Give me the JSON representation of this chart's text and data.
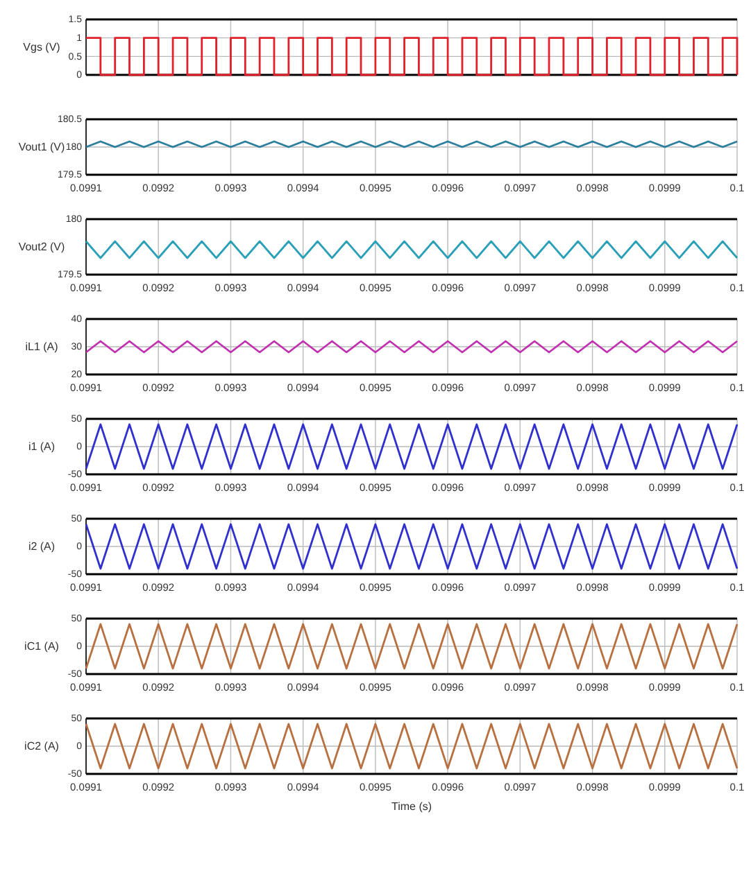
{
  "chart_data": [
    {
      "type": "step",
      "ylabel": "Vgs (V)",
      "tick_labels": "y",
      "grid": true,
      "xlim": [
        0.0991,
        0.1
      ],
      "xticks": [
        0.0991,
        0.0992,
        0.0993,
        0.0994,
        0.0995,
        0.0996,
        0.0997,
        0.0998,
        0.0999,
        0.1
      ],
      "ylim": [
        0,
        1.5
      ],
      "yticks": [
        0,
        0.5,
        1,
        1.5
      ],
      "x": [
        0.0991,
        0.09912,
        0.09914,
        0.09916,
        0.09918,
        0.0992,
        0.09922,
        0.09924,
        0.09926,
        0.09928,
        0.0993,
        0.09932,
        0.09934,
        0.09936,
        0.09938,
        0.0994,
        0.09942,
        0.09944,
        0.09946,
        0.09948,
        0.0995,
        0.09952,
        0.09954,
        0.09956,
        0.09958,
        0.0996,
        0.09962,
        0.09964,
        0.09966,
        0.09968,
        0.0997,
        0.09972,
        0.09974,
        0.09976,
        0.09978,
        0.0998,
        0.09982,
        0.09984,
        0.09986,
        0.09988,
        0.0999,
        0.09992,
        0.09994,
        0.09996,
        0.09998,
        0.1
      ],
      "series": [
        {
          "color": "#e0202a",
          "values": [
            1,
            0,
            1,
            0,
            1,
            0,
            1,
            0,
            1,
            0,
            1,
            0,
            1,
            0,
            1,
            0,
            1,
            0,
            1,
            0,
            1,
            0,
            1,
            0,
            1,
            0,
            1,
            0,
            1,
            0,
            1,
            0,
            1,
            0,
            1,
            0,
            1,
            0,
            1,
            0,
            1,
            0,
            1,
            0,
            1,
            0
          ]
        }
      ]
    },
    {
      "type": "line",
      "ylabel": "Vout1 (V)",
      "grid": true,
      "xlim": [
        0.0991,
        0.1
      ],
      "xticks": [
        0.0991,
        0.0992,
        0.0993,
        0.0994,
        0.0995,
        0.0996,
        0.0997,
        0.0998,
        0.0999,
        0.1
      ],
      "ylim": [
        179.5,
        180.5
      ],
      "yticks": [
        179.5,
        180,
        180.5
      ],
      "x": [
        0.0991,
        0.09912,
        0.09914,
        0.09916,
        0.09918,
        0.0992,
        0.09922,
        0.09924,
        0.09926,
        0.09928,
        0.0993,
        0.09932,
        0.09934,
        0.09936,
        0.09938,
        0.0994,
        0.09942,
        0.09944,
        0.09946,
        0.09948,
        0.0995,
        0.09952,
        0.09954,
        0.09956,
        0.09958,
        0.0996,
        0.09962,
        0.09964,
        0.09966,
        0.09968,
        0.0997,
        0.09972,
        0.09974,
        0.09976,
        0.09978,
        0.0998,
        0.09982,
        0.09984,
        0.09986,
        0.09988,
        0.0999,
        0.09992,
        0.09994,
        0.09996,
        0.09998,
        0.1
      ],
      "series": [
        {
          "color": "#2a7f9e",
          "values": [
            180,
            180.1,
            180,
            180.1,
            180,
            180.1,
            180,
            180.1,
            180,
            180.1,
            180,
            180.1,
            180,
            180.1,
            180,
            180.1,
            180,
            180.1,
            180,
            180.1,
            180,
            180.1,
            180,
            180.1,
            180,
            180.1,
            180,
            180.1,
            180,
            180.1,
            180,
            180.1,
            180,
            180.1,
            180,
            180.1,
            180,
            180.1,
            180,
            180.1,
            180,
            180.1,
            180,
            180.1,
            180,
            180.1
          ]
        }
      ]
    },
    {
      "type": "line",
      "ylabel": "Vout2 (V)",
      "grid": true,
      "xlim": [
        0.0991,
        0.1
      ],
      "xticks": [
        0.0991,
        0.0992,
        0.0993,
        0.0994,
        0.0995,
        0.0996,
        0.0997,
        0.0998,
        0.0999,
        0.1
      ],
      "ylim": [
        179.5,
        180
      ],
      "yticks": [
        179.5,
        180
      ],
      "x": [
        0.0991,
        0.09912,
        0.09914,
        0.09916,
        0.09918,
        0.0992,
        0.09922,
        0.09924,
        0.09926,
        0.09928,
        0.0993,
        0.09932,
        0.09934,
        0.09936,
        0.09938,
        0.0994,
        0.09942,
        0.09944,
        0.09946,
        0.09948,
        0.0995,
        0.09952,
        0.09954,
        0.09956,
        0.09958,
        0.0996,
        0.09962,
        0.09964,
        0.09966,
        0.09968,
        0.0997,
        0.09972,
        0.09974,
        0.09976,
        0.09978,
        0.0998,
        0.09982,
        0.09984,
        0.09986,
        0.09988,
        0.0999,
        0.09992,
        0.09994,
        0.09996,
        0.09998,
        0.1
      ],
      "series": [
        {
          "color": "#2aa0b8",
          "values": [
            179.8,
            179.65,
            179.8,
            179.65,
            179.8,
            179.65,
            179.8,
            179.65,
            179.8,
            179.65,
            179.8,
            179.65,
            179.8,
            179.65,
            179.8,
            179.65,
            179.8,
            179.65,
            179.8,
            179.65,
            179.8,
            179.65,
            179.8,
            179.65,
            179.8,
            179.65,
            179.8,
            179.65,
            179.8,
            179.65,
            179.8,
            179.65,
            179.8,
            179.65,
            179.8,
            179.65,
            179.8,
            179.65,
            179.8,
            179.65,
            179.8,
            179.65,
            179.8,
            179.65,
            179.8,
            179.65
          ]
        }
      ]
    },
    {
      "type": "line",
      "ylabel": "iL1 (A)",
      "grid": true,
      "xlim": [
        0.0991,
        0.1
      ],
      "xticks": [
        0.0991,
        0.0992,
        0.0993,
        0.0994,
        0.0995,
        0.0996,
        0.0997,
        0.0998,
        0.0999,
        0.1
      ],
      "ylim": [
        20,
        40
      ],
      "yticks": [
        20,
        30,
        40
      ],
      "x": [
        0.0991,
        0.09912,
        0.09914,
        0.09916,
        0.09918,
        0.0992,
        0.09922,
        0.09924,
        0.09926,
        0.09928,
        0.0993,
        0.09932,
        0.09934,
        0.09936,
        0.09938,
        0.0994,
        0.09942,
        0.09944,
        0.09946,
        0.09948,
        0.0995,
        0.09952,
        0.09954,
        0.09956,
        0.09958,
        0.0996,
        0.09962,
        0.09964,
        0.09966,
        0.09968,
        0.0997,
        0.09972,
        0.09974,
        0.09976,
        0.09978,
        0.0998,
        0.09982,
        0.09984,
        0.09986,
        0.09988,
        0.0999,
        0.09992,
        0.09994,
        0.09996,
        0.09998,
        0.1
      ],
      "series": [
        {
          "color": "#c030b0",
          "values": [
            28,
            32,
            28,
            32,
            28,
            32,
            28,
            32,
            28,
            32,
            28,
            32,
            28,
            32,
            28,
            32,
            28,
            32,
            28,
            32,
            28,
            32,
            28,
            32,
            28,
            32,
            28,
            32,
            28,
            32,
            28,
            32,
            28,
            32,
            28,
            32,
            28,
            32,
            28,
            32,
            28,
            32,
            28,
            32,
            28,
            32
          ]
        }
      ]
    },
    {
      "type": "line",
      "ylabel": "i1 (A)",
      "grid": true,
      "xlim": [
        0.0991,
        0.1
      ],
      "xticks": [
        0.0991,
        0.0992,
        0.0993,
        0.0994,
        0.0995,
        0.0996,
        0.0997,
        0.0998,
        0.0999,
        0.1
      ],
      "ylim": [
        -50,
        50
      ],
      "yticks": [
        -50,
        0,
        50
      ],
      "x": [
        0.0991,
        0.09912,
        0.09914,
        0.09916,
        0.09918,
        0.0992,
        0.09922,
        0.09924,
        0.09926,
        0.09928,
        0.0993,
        0.09932,
        0.09934,
        0.09936,
        0.09938,
        0.0994,
        0.09942,
        0.09944,
        0.09946,
        0.09948,
        0.0995,
        0.09952,
        0.09954,
        0.09956,
        0.09958,
        0.0996,
        0.09962,
        0.09964,
        0.09966,
        0.09968,
        0.0997,
        0.09972,
        0.09974,
        0.09976,
        0.09978,
        0.0998,
        0.09982,
        0.09984,
        0.09986,
        0.09988,
        0.0999,
        0.09992,
        0.09994,
        0.09996,
        0.09998,
        0.1
      ],
      "series": [
        {
          "color": "#3030d0",
          "values": [
            -40,
            40,
            -40,
            40,
            -40,
            40,
            -40,
            40,
            -40,
            40,
            -40,
            40,
            -40,
            40,
            -40,
            40,
            -40,
            40,
            -40,
            40,
            -40,
            40,
            -40,
            40,
            -40,
            40,
            -40,
            40,
            -40,
            40,
            -40,
            40,
            -40,
            40,
            -40,
            40,
            -40,
            40,
            -40,
            40,
            -40,
            40,
            -40,
            40,
            -40,
            40
          ]
        }
      ]
    },
    {
      "type": "line",
      "ylabel": "i2 (A)",
      "grid": true,
      "xlim": [
        0.0991,
        0.1
      ],
      "xticks": [
        0.0991,
        0.0992,
        0.0993,
        0.0994,
        0.0995,
        0.0996,
        0.0997,
        0.0998,
        0.0999,
        0.1
      ],
      "ylim": [
        -50,
        50
      ],
      "yticks": [
        -50,
        0,
        50
      ],
      "x": [
        0.0991,
        0.09912,
        0.09914,
        0.09916,
        0.09918,
        0.0992,
        0.09922,
        0.09924,
        0.09926,
        0.09928,
        0.0993,
        0.09932,
        0.09934,
        0.09936,
        0.09938,
        0.0994,
        0.09942,
        0.09944,
        0.09946,
        0.09948,
        0.0995,
        0.09952,
        0.09954,
        0.09956,
        0.09958,
        0.0996,
        0.09962,
        0.09964,
        0.09966,
        0.09968,
        0.0997,
        0.09972,
        0.09974,
        0.09976,
        0.09978,
        0.0998,
        0.09982,
        0.09984,
        0.09986,
        0.09988,
        0.0999,
        0.09992,
        0.09994,
        0.09996,
        0.09998,
        0.1
      ],
      "series": [
        {
          "color": "#3030d0",
          "values": [
            40,
            -40,
            40,
            -40,
            40,
            -40,
            40,
            -40,
            40,
            -40,
            40,
            -40,
            40,
            -40,
            40,
            -40,
            40,
            -40,
            40,
            -40,
            40,
            -40,
            40,
            -40,
            40,
            -40,
            40,
            -40,
            40,
            -40,
            40,
            -40,
            40,
            -40,
            40,
            -40,
            40,
            -40,
            40,
            -40,
            40,
            -40,
            40,
            -40,
            40,
            -40
          ]
        }
      ]
    },
    {
      "type": "line",
      "ylabel": "iC1 (A)",
      "grid": true,
      "xlim": [
        0.0991,
        0.1
      ],
      "xticks": [
        0.0991,
        0.0992,
        0.0993,
        0.0994,
        0.0995,
        0.0996,
        0.0997,
        0.0998,
        0.0999,
        0.1
      ],
      "ylim": [
        -50,
        50
      ],
      "yticks": [
        -50,
        0,
        50
      ],
      "x": [
        0.0991,
        0.09912,
        0.09914,
        0.09916,
        0.09918,
        0.0992,
        0.09922,
        0.09924,
        0.09926,
        0.09928,
        0.0993,
        0.09932,
        0.09934,
        0.09936,
        0.09938,
        0.0994,
        0.09942,
        0.09944,
        0.09946,
        0.09948,
        0.0995,
        0.09952,
        0.09954,
        0.09956,
        0.09958,
        0.0996,
        0.09962,
        0.09964,
        0.09966,
        0.09968,
        0.0997,
        0.09972,
        0.09974,
        0.09976,
        0.09978,
        0.0998,
        0.09982,
        0.09984,
        0.09986,
        0.09988,
        0.0999,
        0.09992,
        0.09994,
        0.09996,
        0.09998,
        0.1
      ],
      "series": [
        {
          "color": "#b87040",
          "values": [
            -40,
            40,
            -40,
            40,
            -40,
            40,
            -40,
            40,
            -40,
            40,
            -40,
            40,
            -40,
            40,
            -40,
            40,
            -40,
            40,
            -40,
            40,
            -40,
            40,
            -40,
            40,
            -40,
            40,
            -40,
            40,
            -40,
            40,
            -40,
            40,
            -40,
            40,
            -40,
            40,
            -40,
            40,
            -40,
            40,
            -40,
            40,
            -40,
            40,
            -40,
            40
          ]
        }
      ]
    },
    {
      "type": "line",
      "ylabel": "iC2 (A)",
      "xlabel": "Time (s)",
      "grid": true,
      "xlim": [
        0.0991,
        0.1
      ],
      "xticks": [
        0.0991,
        0.0992,
        0.0993,
        0.0994,
        0.0995,
        0.0996,
        0.0997,
        0.0998,
        0.0999,
        0.1
      ],
      "ylim": [
        -50,
        50
      ],
      "yticks": [
        -50,
        0,
        50
      ],
      "x": [
        0.0991,
        0.09912,
        0.09914,
        0.09916,
        0.09918,
        0.0992,
        0.09922,
        0.09924,
        0.09926,
        0.09928,
        0.0993,
        0.09932,
        0.09934,
        0.09936,
        0.09938,
        0.0994,
        0.09942,
        0.09944,
        0.09946,
        0.09948,
        0.0995,
        0.09952,
        0.09954,
        0.09956,
        0.09958,
        0.0996,
        0.09962,
        0.09964,
        0.09966,
        0.09968,
        0.0997,
        0.09972,
        0.09974,
        0.09976,
        0.09978,
        0.0998,
        0.09982,
        0.09984,
        0.09986,
        0.09988,
        0.0999,
        0.09992,
        0.09994,
        0.09996,
        0.09998,
        0.1
      ],
      "series": [
        {
          "color": "#b87040",
          "values": [
            40,
            -40,
            40,
            -40,
            40,
            -40,
            40,
            -40,
            40,
            -40,
            40,
            -40,
            40,
            -40,
            40,
            -40,
            40,
            -40,
            40,
            -40,
            40,
            -40,
            40,
            -40,
            40,
            -40,
            40,
            -40,
            40,
            -40,
            40,
            -40,
            40,
            -40,
            40,
            -40,
            40,
            -40,
            40,
            -40,
            40,
            -40,
            40,
            -40,
            40,
            -40
          ]
        }
      ]
    }
  ]
}
